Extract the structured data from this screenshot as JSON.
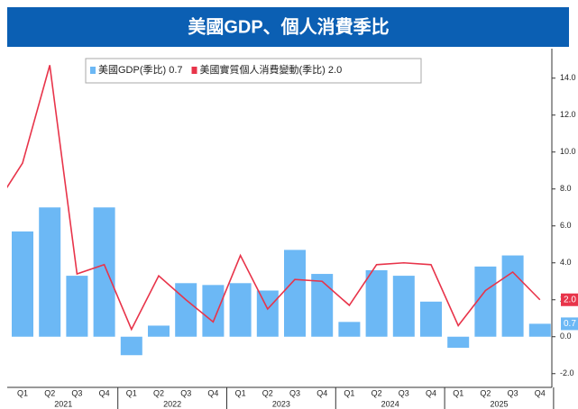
{
  "chart_data": {
    "type": "bar",
    "title": "美國GDP、個人消費季比",
    "categories": [
      null,
      "Q1",
      "Q2",
      "Q3",
      "Q4",
      "Q1",
      "Q2",
      "Q3",
      "Q4",
      "Q1",
      "Q2",
      "Q3",
      "Q4",
      "Q1",
      "Q2",
      "Q3",
      "Q4",
      "Q1",
      "Q2",
      "Q3",
      "Q4"
    ],
    "years": [
      "2021",
      "2022",
      "2023",
      "2024",
      "2025"
    ],
    "series": [
      {
        "name": "美國GDP(季比) 0.7",
        "type": "bar",
        "color": "#6cb8f5",
        "last_label": "0.7",
        "values": [
          null,
          5.7,
          7.0,
          3.3,
          7.0,
          -1.0,
          0.6,
          2.9,
          2.8,
          2.9,
          2.5,
          4.7,
          3.4,
          0.8,
          3.6,
          3.3,
          1.9,
          -0.6,
          3.8,
          4.4,
          0.7
        ]
      },
      {
        "name": "美國實質個人消費變動(季比) 2.0",
        "type": "line",
        "color": "#e8344a",
        "last_label": "2.0",
        "values": [
          7.1,
          9.4,
          14.7,
          3.4,
          3.9,
          0.4,
          3.3,
          2.0,
          0.8,
          4.4,
          1.5,
          3.1,
          3.0,
          1.7,
          3.9,
          4.0,
          3.9,
          0.6,
          2.5,
          3.5,
          2.0
        ]
      }
    ],
    "ylim": [
      -2.5,
      15.5
    ],
    "yticks": [
      {
        "value": -2,
        "label": "-2.0"
      },
      {
        "value": 0,
        "label": "0.0"
      },
      {
        "value": 2,
        "label": "2.0"
      },
      {
        "value": 4,
        "label": "4.0"
      },
      {
        "value": 6,
        "label": "6.0"
      },
      {
        "value": 8,
        "label": "8.0"
      },
      {
        "value": 10,
        "label": "10.0"
      },
      {
        "value": 12,
        "label": "12.0"
      },
      {
        "value": 14,
        "label": "14.0"
      }
    ],
    "grid": false
  }
}
